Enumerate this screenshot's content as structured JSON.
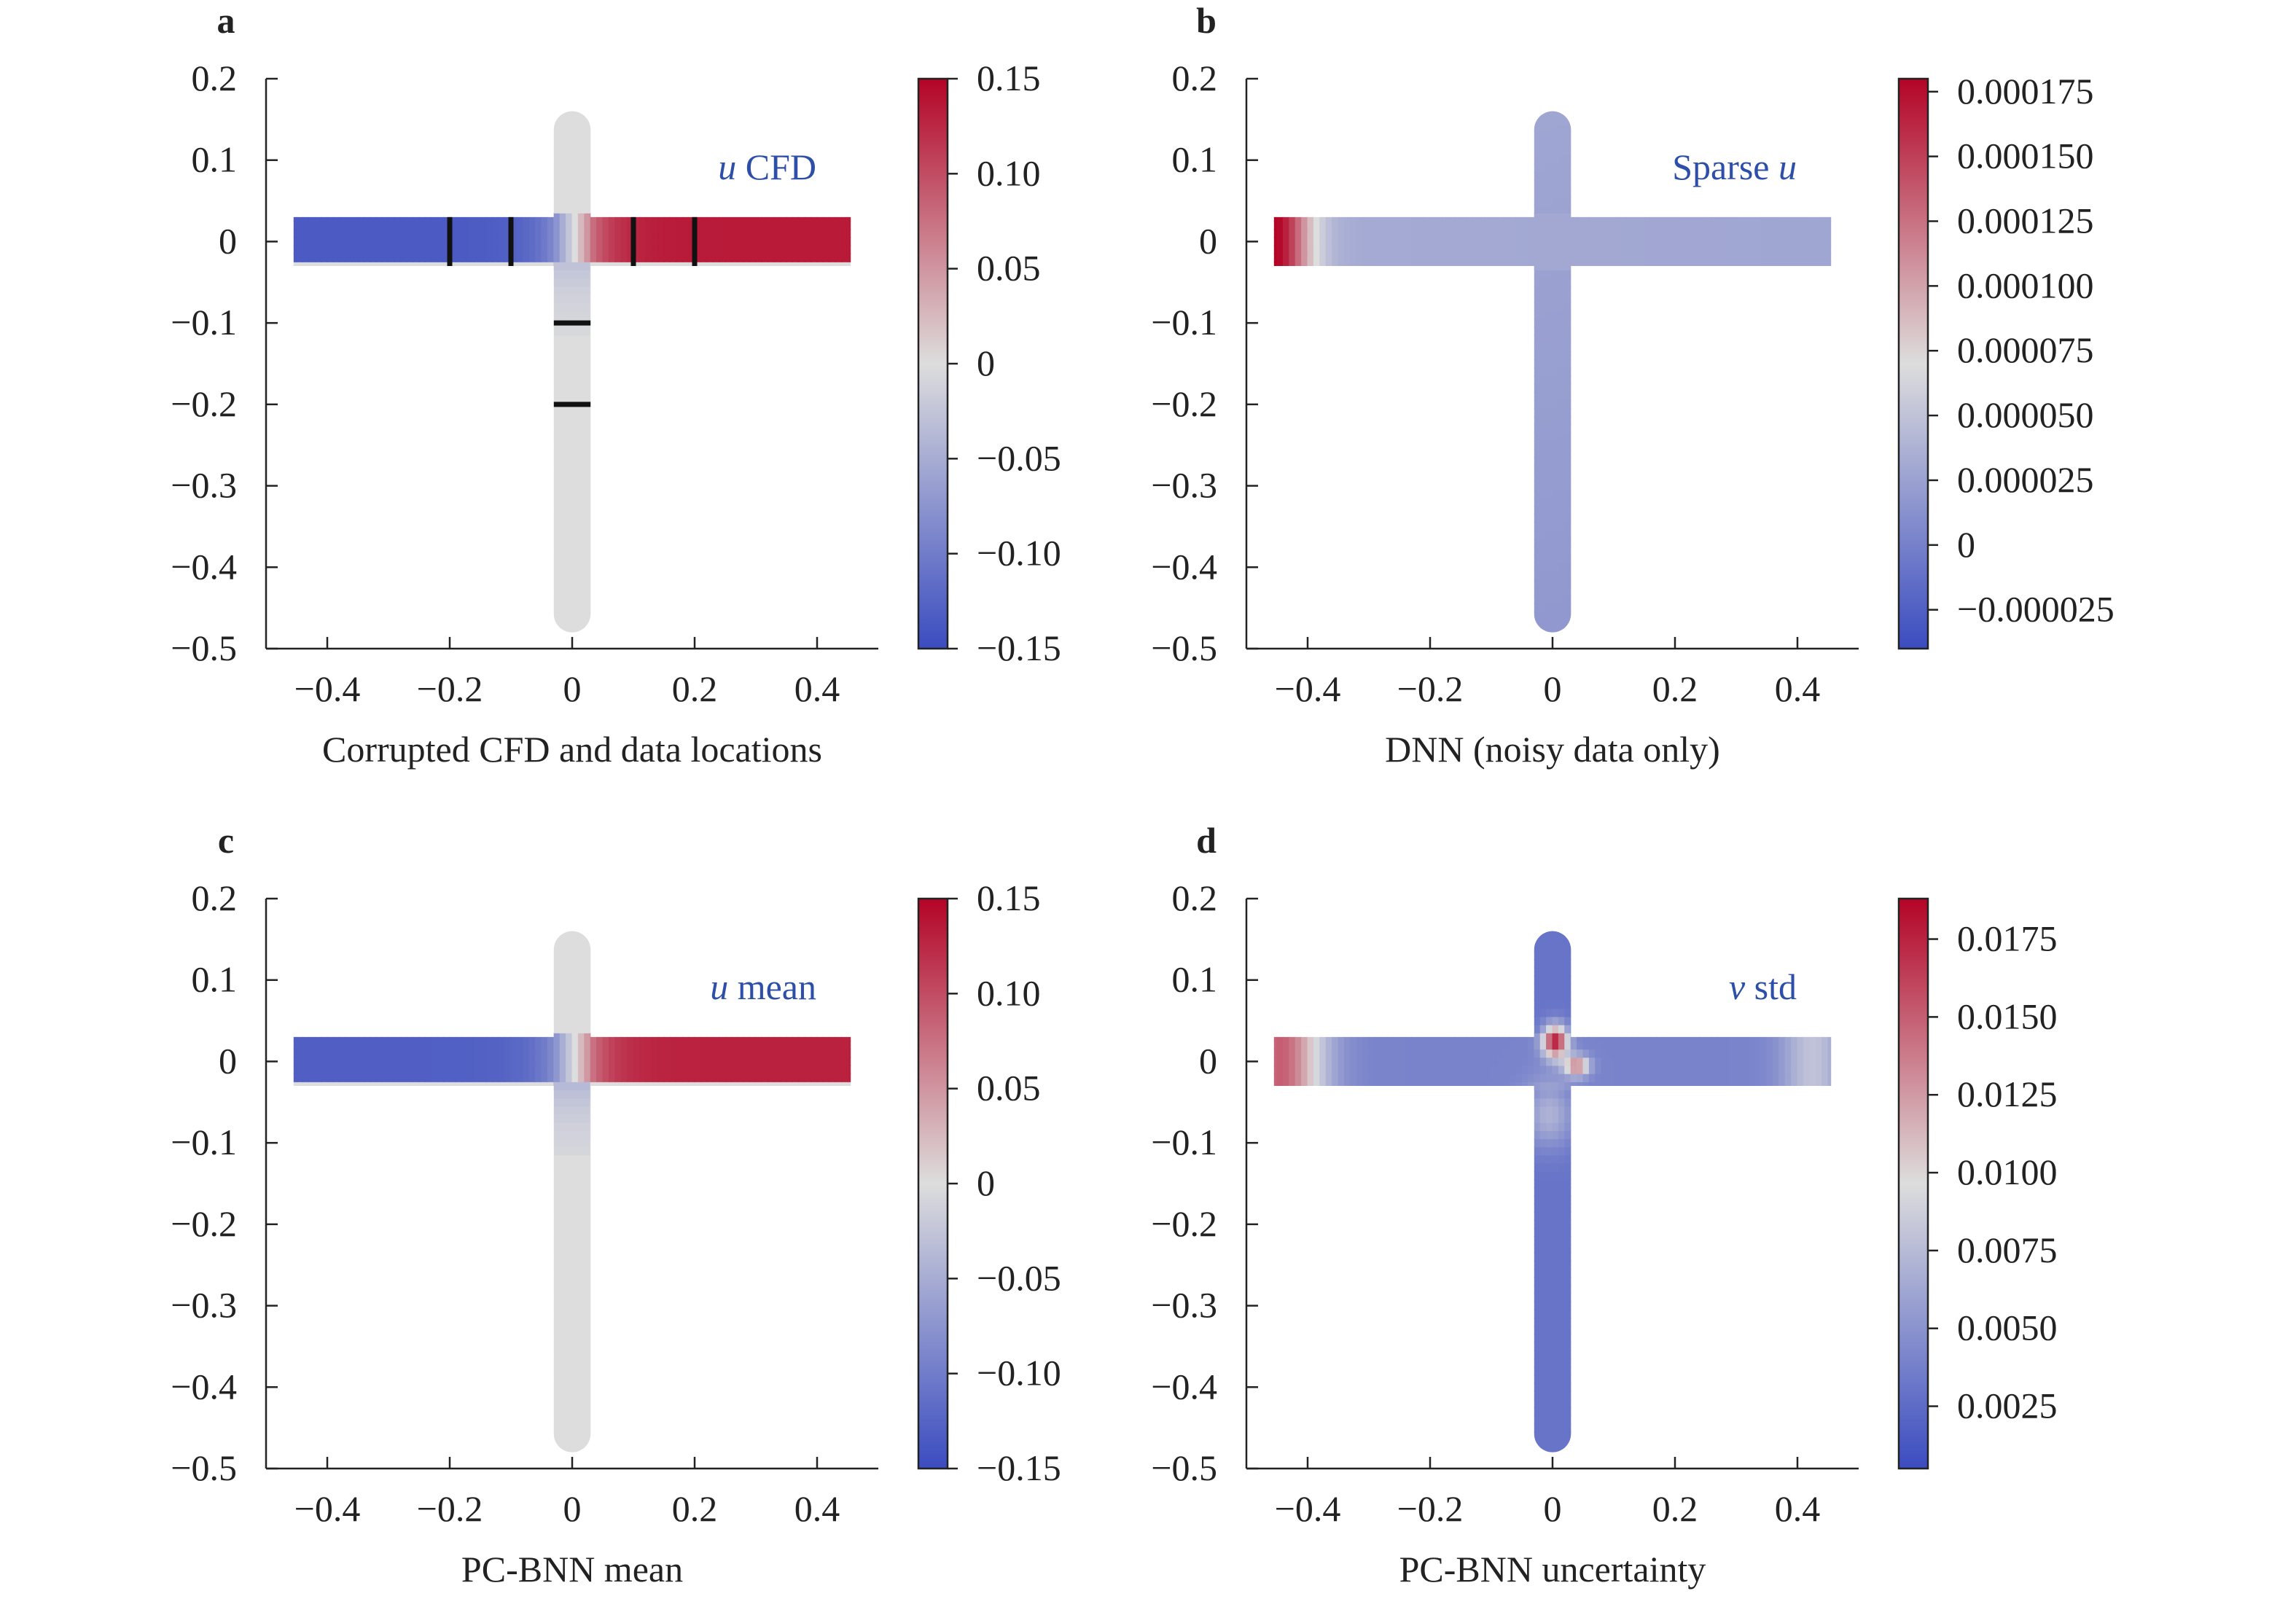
{
  "colors": {
    "cold": "#3b4cc0",
    "neutral": "#dddddd",
    "warm": "#b40426",
    "label_blue": "#2e4fa8",
    "marker": "#111111"
  },
  "chart_data": [
    {
      "panel_label": "a",
      "type": "heatmap",
      "field_label_prefix": "u",
      "field_label_suffix": " CFD",
      "xlabel": "Corrupted CFD and data locations",
      "ylabel": "",
      "xlim": [
        -0.5,
        0.5
      ],
      "ylim": [
        -0.5,
        0.2
      ],
      "xticks": [
        "−0.4",
        "−0.2",
        "0",
        "0.2",
        "0.4"
      ],
      "xtick_values": [
        -0.4,
        -0.2,
        0,
        0.2,
        0.4
      ],
      "yticks": [
        "0.2",
        "0.1",
        "0",
        "−0.1",
        "−0.2",
        "−0.3",
        "−0.4",
        "−0.5"
      ],
      "ytick_values": [
        0.2,
        0.1,
        0,
        -0.1,
        -0.2,
        -0.3,
        -0.4,
        -0.5
      ],
      "colorbar": {
        "range": [
          -0.15,
          0.15
        ],
        "ticks": [
          "0.15",
          "0.10",
          "0.05",
          "0",
          "−0.05",
          "−0.10",
          "−0.15"
        ],
        "tick_values": [
          0.15,
          0.1,
          0.05,
          0,
          -0.05,
          -0.1,
          -0.15
        ]
      },
      "field": "u_cfd",
      "data_locations": {
        "vertical": [
          -0.2,
          -0.1,
          0.1,
          0.2
        ],
        "horizontal": [
          -0.1,
          -0.2
        ]
      }
    },
    {
      "panel_label": "b",
      "type": "heatmap",
      "field_label_prefix": "Sparse ",
      "field_label_suffix": "u",
      "field_label_italic_last": true,
      "xlabel": "DNN (noisy data only)",
      "ylabel": "",
      "xlim": [
        -0.5,
        0.5
      ],
      "ylim": [
        -0.5,
        0.2
      ],
      "xticks": [
        "−0.4",
        "−0.2",
        "0",
        "0.2",
        "0.4"
      ],
      "xtick_values": [
        -0.4,
        -0.2,
        0,
        0.2,
        0.4
      ],
      "yticks": [
        "0.2",
        "0.1",
        "0",
        "−0.1",
        "−0.2",
        "−0.3",
        "−0.4",
        "−0.5"
      ],
      "ytick_values": [
        0.2,
        0.1,
        0,
        -0.1,
        -0.2,
        -0.3,
        -0.4,
        -0.5
      ],
      "colorbar": {
        "range": [
          -4e-05,
          0.00018
        ],
        "ticks": [
          "0.000175",
          "0.000150",
          "0.000125",
          "0.000100",
          "0.000075",
          "0.000050",
          "0.000025",
          "0",
          "−0.000025"
        ],
        "tick_values": [
          0.000175,
          0.00015,
          0.000125,
          0.0001,
          7.5e-05,
          5e-05,
          2.5e-05,
          0,
          -2.5e-05
        ]
      },
      "field": "dnn_u"
    },
    {
      "panel_label": "c",
      "type": "heatmap",
      "field_label_prefix": "u",
      "field_label_suffix": " mean",
      "xlabel": "PC-BNN mean",
      "ylabel": "",
      "xlim": [
        -0.5,
        0.5
      ],
      "ylim": [
        -0.5,
        0.2
      ],
      "xticks": [
        "−0.4",
        "−0.2",
        "0",
        "0.2",
        "0.4"
      ],
      "xtick_values": [
        -0.4,
        -0.2,
        0,
        0.2,
        0.4
      ],
      "yticks": [
        "0.2",
        "0.1",
        "0",
        "−0.1",
        "−0.2",
        "−0.3",
        "−0.4",
        "−0.5"
      ],
      "ytick_values": [
        0.2,
        0.1,
        0,
        -0.1,
        -0.2,
        -0.3,
        -0.4,
        -0.5
      ],
      "colorbar": {
        "range": [
          -0.15,
          0.15
        ],
        "ticks": [
          "0.15",
          "0.10",
          "0.05",
          "0",
          "−0.05",
          "−0.10",
          "−0.15"
        ],
        "tick_values": [
          0.15,
          0.1,
          0.05,
          0,
          -0.05,
          -0.1,
          -0.15
        ]
      },
      "field": "u_mean"
    },
    {
      "panel_label": "d",
      "type": "heatmap",
      "field_label_prefix": "v",
      "field_label_suffix": " std",
      "xlabel": "PC-BNN uncertainty",
      "ylabel": "",
      "xlim": [
        -0.5,
        0.5
      ],
      "ylim": [
        -0.5,
        0.2
      ],
      "xticks": [
        "−0.4",
        "−0.2",
        "0",
        "0.2",
        "0.4"
      ],
      "xtick_values": [
        -0.4,
        -0.2,
        0,
        0.2,
        0.4
      ],
      "yticks": [
        "0.2",
        "0.1",
        "0",
        "−0.1",
        "−0.2",
        "−0.3",
        "−0.4",
        "−0.5"
      ],
      "ytick_values": [
        0.2,
        0.1,
        0,
        -0.1,
        -0.2,
        -0.3,
        -0.4,
        -0.5
      ],
      "colorbar": {
        "range": [
          0.0005,
          0.0188
        ],
        "ticks": [
          "0.0175",
          "0.0150",
          "0.0125",
          "0.0100",
          "0.0075",
          "0.0050",
          "0.0025"
        ],
        "tick_values": [
          0.0175,
          0.015,
          0.0125,
          0.01,
          0.0075,
          0.005,
          0.0025
        ]
      },
      "field": "v_std"
    }
  ]
}
